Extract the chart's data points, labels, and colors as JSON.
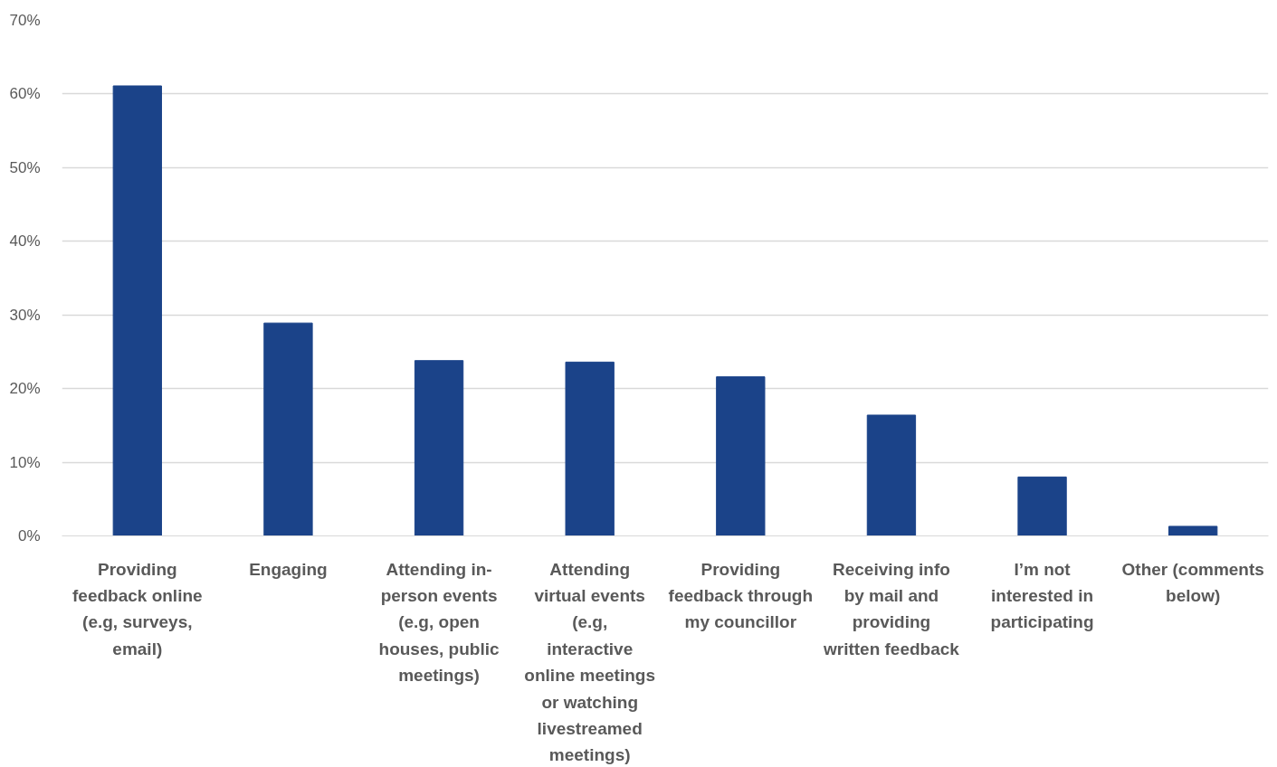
{
  "chart_data": {
    "type": "bar",
    "categories": [
      "Providing feedback online (e.g, surveys, email)",
      "Engaging",
      "Attending in-person events (e.g, open houses, public meetings)",
      "Attending virtual events (e.g, interactive online meetings or watching livestreamed meetings)",
      "Providing feedback through my councillor",
      "Receiving info by mail and providing written feedback",
      "I’m not interested in participating",
      "Other (comments below)"
    ],
    "values": [
      61.1,
      28.9,
      23.8,
      23.6,
      21.6,
      16.4,
      8.0,
      1.3
    ],
    "color": "#1b4389",
    "ylim": [
      0,
      70
    ],
    "yticks": [
      {
        "value": 0,
        "label": "0%"
      },
      {
        "value": 10,
        "label": "10%"
      },
      {
        "value": 20,
        "label": "20%"
      },
      {
        "value": 30,
        "label": "30%"
      },
      {
        "value": 40,
        "label": "40%"
      },
      {
        "value": 50,
        "label": "50%"
      },
      {
        "value": 60,
        "label": "60%"
      },
      {
        "value": 70,
        "label": "70%"
      }
    ],
    "grid": "y"
  }
}
